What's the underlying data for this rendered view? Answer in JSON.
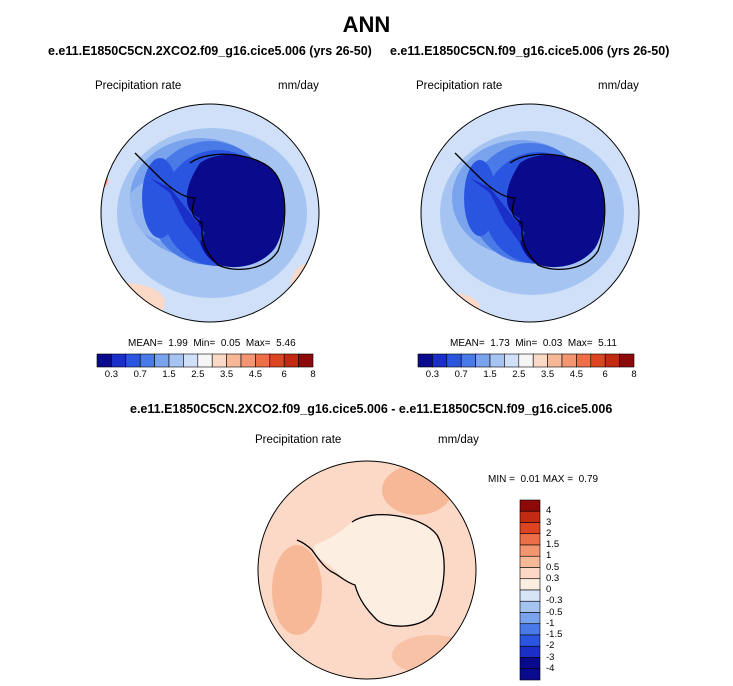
{
  "title": "ANN",
  "panels": [
    {
      "case_title": "e.e11.E1850C5CN.2XCO2.f09_g16.cice5.006 (yrs 26-50)",
      "variable": "Precipitation rate",
      "units": "mm/day",
      "stats": {
        "mean_label": "MEAN=",
        "mean": "1.99",
        "min_label": "Min=",
        "min": "0.05",
        "max_label": "Max=",
        "max": "5.46"
      }
    },
    {
      "case_title": "e.e11.E1850C5CN.f09_g16.cice5.006 (yrs 26-50)",
      "variable": "Precipitation rate",
      "units": "mm/day",
      "stats": {
        "mean_label": "MEAN=",
        "mean": "1.73",
        "min_label": "Min=",
        "min": "0.03",
        "max_label": "Max=",
        "max": "5.11"
      }
    }
  ],
  "field_colorbar": {
    "colors": [
      "#0a0a8c",
      "#1a2fc8",
      "#2a55e0",
      "#4a7ae8",
      "#7aa3ee",
      "#a6c4f2",
      "#cfe0f8",
      "#f6f6f6",
      "#fbd9c6",
      "#f7b898",
      "#f29570",
      "#ec6f47",
      "#dd4422",
      "#c22a12",
      "#8c0a0a"
    ],
    "labels": [
      "0.3",
      "0.7",
      "1.5",
      "2.5",
      "3.5",
      "4.5",
      "6",
      "8"
    ]
  },
  "difference": {
    "title": "e.e11.E1850C5CN.2XCO2.f09_g16.cice5.006 - e.e11.E1850C5CN.f09_g16.cice5.006",
    "variable": "Precipitation rate",
    "units": "mm/day",
    "stats": {
      "min_label": "MIN =",
      "min": "0.01",
      "max_label": "MAX =",
      "max": "0.79"
    },
    "colorbar": {
      "colors": [
        "#8c0a0a",
        "#c22a12",
        "#dd4422",
        "#ec6f47",
        "#f29570",
        "#f7b898",
        "#fbd9c6",
        "#fdeee2",
        "#d6e4f6",
        "#a6c4f2",
        "#7aa3ee",
        "#4a7ae8",
        "#2a55e0",
        "#1a2fc8",
        "#0a0a8c"
      ],
      "labels": [
        "4",
        "3",
        "2",
        "1.5",
        "1",
        "0.5",
        "0.3",
        "0",
        "-0.3",
        "-0.5",
        "-1",
        "-1.5",
        "-2",
        "-3",
        "-4"
      ]
    }
  }
}
